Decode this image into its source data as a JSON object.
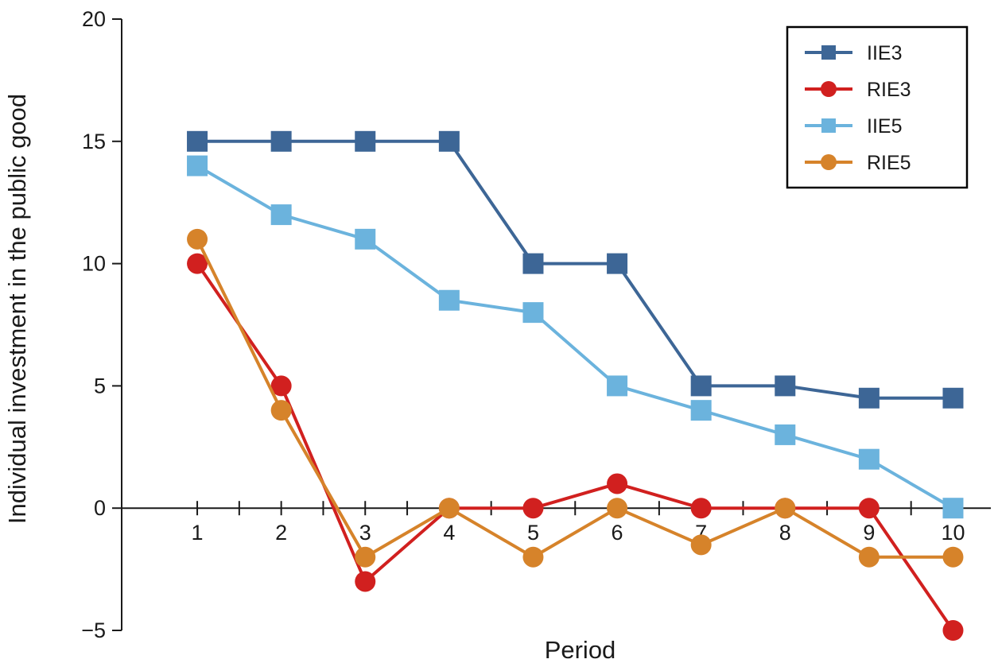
{
  "chart_data": {
    "type": "line",
    "title": "",
    "xlabel": "Period",
    "ylabel": "Individual investment in the public good",
    "x": [
      1,
      2,
      3,
      4,
      5,
      6,
      7,
      8,
      9,
      10
    ],
    "x_tick_labels": [
      "1",
      "2",
      "3",
      "4",
      "5",
      "6",
      "7",
      "8",
      "9",
      "10"
    ],
    "xlim": [
      0.1,
      10.45
    ],
    "ylim": [
      -5,
      20
    ],
    "y_ticks": [
      -5,
      0,
      5,
      10,
      15,
      20
    ],
    "y_tick_labels": [
      "−5",
      "0",
      "5",
      "10",
      "15",
      "20"
    ],
    "grid": false,
    "legend_position": "top-right",
    "series": [
      {
        "name": "IIE3",
        "marker": "square",
        "color": "#3d6696",
        "values": [
          15,
          15,
          15,
          15,
          10,
          10,
          5,
          5,
          4.5,
          4.5
        ]
      },
      {
        "name": "RIE3",
        "marker": "circle",
        "color": "#d1201f",
        "values": [
          10,
          5,
          -3,
          0,
          0,
          1,
          0,
          0,
          0,
          -5
        ]
      },
      {
        "name": "IIE5",
        "marker": "square",
        "color": "#6bb3dd",
        "values": [
          14,
          12,
          11,
          8.5,
          8,
          5,
          4,
          3,
          2,
          0
        ]
      },
      {
        "name": "RIE5",
        "marker": "circle",
        "color": "#d6832a",
        "values": [
          11,
          4,
          -2,
          0,
          -2,
          0,
          -1.5,
          0,
          -2,
          -2
        ]
      }
    ]
  }
}
